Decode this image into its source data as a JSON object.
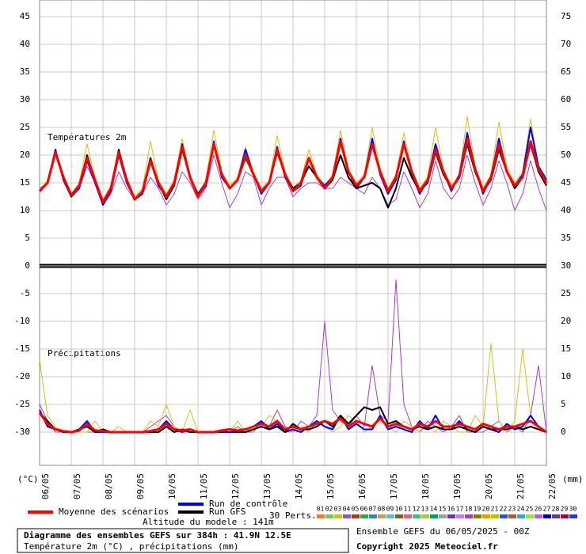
{
  "chart_data": {
    "type": "line",
    "annotations": [
      "Températures 2m",
      "Précipitations"
    ],
    "y_unit": "(°C)",
    "y2_unit": "(mm)",
    "ylim": [
      -36,
      48
    ],
    "yticks": [
      45,
      40,
      35,
      30,
      25,
      20,
      15,
      10,
      5,
      0,
      -5,
      -10,
      -15,
      -20,
      -25,
      -30
    ],
    "y2lim": [
      -6,
      78
    ],
    "y2ticks": [
      75,
      70,
      65,
      60,
      55,
      50,
      45,
      40,
      35,
      30,
      25,
      20,
      15,
      10,
      5,
      0
    ],
    "grid": true,
    "categories": [
      "06/05",
      null,
      null,
      null,
      "07/05",
      null,
      null,
      null,
      "08/05",
      null,
      null,
      null,
      "09/05",
      null,
      null,
      null,
      "10/05",
      null,
      null,
      null,
      "11/05",
      null,
      null,
      null,
      "12/05",
      null,
      null,
      null,
      "13/05",
      null,
      null,
      null,
      "14/05",
      null,
      null,
      null,
      "15/05",
      null,
      null,
      null,
      "16/05",
      null,
      null,
      null,
      "17/05",
      null,
      null,
      null,
      "18/05",
      null,
      null,
      null,
      "19/05",
      null,
      null,
      null,
      "20/05",
      null,
      null,
      null,
      "21/05",
      null,
      null,
      null,
      "22/05"
    ],
    "series": [
      {
        "color": "#a040c0",
        "values": [
          14,
          15,
          20,
          16,
          13,
          14,
          18,
          15,
          11,
          13,
          17,
          14,
          12,
          13,
          16,
          14,
          11,
          13,
          17,
          15,
          12,
          14,
          20,
          15,
          10.5,
          13,
          17,
          16,
          11,
          14,
          16,
          16,
          12.5,
          14,
          15,
          15,
          14,
          14,
          16,
          15,
          14,
          13,
          16,
          14,
          11,
          12,
          17,
          14,
          10.5,
          13,
          19,
          14,
          12,
          14,
          20,
          15,
          11,
          14,
          19,
          15,
          10,
          13,
          19,
          14,
          10
        ]
      },
      {
        "color": "#d0c020",
        "values": [
          13.5,
          15.5,
          21,
          16.5,
          13,
          15,
          22,
          16,
          12,
          14.5,
          21,
          16,
          12.5,
          14,
          22.5,
          15.5,
          13,
          15.5,
          23,
          16.5,
          13,
          15.5,
          24.5,
          17,
          14.5,
          16,
          21.5,
          17,
          14,
          15.5,
          23.5,
          17,
          14,
          15.5,
          21,
          16.5,
          14.5,
          16.5,
          24.5,
          17.5,
          15,
          16.5,
          25,
          17.5,
          14,
          16.5,
          24,
          17.5,
          14,
          16,
          25,
          17.5,
          14.5,
          16.5,
          27,
          18,
          14,
          16.5,
          26,
          18,
          15,
          17,
          26.5,
          18,
          16
        ]
      },
      {
        "color": "#a040c0",
        "axis": "y2",
        "values": [
          5,
          2,
          0,
          0,
          0,
          0,
          0,
          0,
          0,
          0,
          0,
          0,
          0,
          0,
          1,
          2,
          3,
          1,
          0,
          0,
          0,
          0,
          0,
          0,
          0,
          1,
          0,
          0,
          2,
          1,
          4,
          1,
          0,
          2,
          1,
          3,
          20,
          4,
          2,
          1,
          3,
          1,
          12,
          3,
          2,
          27.5,
          5,
          1,
          0,
          2,
          1,
          0,
          1,
          3,
          0,
          0,
          0,
          1,
          2,
          0,
          1,
          0,
          3,
          12,
          0
        ]
      },
      {
        "color": "#d0c020",
        "axis": "y2",
        "values": [
          13,
          3,
          1,
          0,
          0,
          0,
          0,
          2,
          0,
          0,
          1,
          0,
          0,
          0,
          2,
          1,
          5,
          1,
          0,
          4,
          0,
          0,
          0,
          0,
          0,
          2,
          0,
          1,
          1,
          3,
          2,
          0,
          0,
          1,
          0,
          2,
          1,
          0,
          1,
          3,
          2,
          0,
          1,
          2,
          1,
          0,
          2,
          1,
          0,
          1,
          0,
          2,
          1,
          0,
          0,
          3,
          1,
          16,
          2,
          0,
          2,
          15,
          3,
          1,
          0
        ]
      },
      {
        "name": "Run de contrôle",
        "color": "#0000ff",
        "values": [
          13.5,
          15,
          21,
          15.5,
          12.5,
          14,
          19,
          15,
          11,
          13.5,
          20,
          15,
          12,
          13,
          19,
          14.5,
          12.5,
          14.5,
          22,
          16,
          12.5,
          14.5,
          22.5,
          16,
          14,
          15.5,
          21,
          16.5,
          13,
          15,
          21.5,
          16,
          13.5,
          14.5,
          19.5,
          16,
          14.5,
          16,
          23,
          17,
          14,
          16,
          23,
          16.5,
          13,
          15.5,
          22.5,
          16.5,
          13,
          15.5,
          22,
          17,
          13.5,
          16.5,
          24,
          17.5,
          13,
          16,
          23,
          17,
          14.5,
          16.5,
          25,
          18,
          15.5
        ]
      },
      {
        "name": "Run GFS",
        "color": "#000000",
        "values": [
          13.5,
          15,
          20.5,
          16,
          12.5,
          14.5,
          20,
          15.5,
          11.5,
          14,
          21,
          15.5,
          12,
          13.5,
          19.5,
          15,
          12,
          14.5,
          21,
          16,
          13,
          15,
          22,
          16.5,
          14,
          15.5,
          19.5,
          16.5,
          13.5,
          15,
          20.5,
          16.5,
          14,
          15,
          18,
          16,
          14,
          15.5,
          20,
          16,
          14,
          14.5,
          15,
          14,
          10.5,
          14,
          19.5,
          16,
          13.5,
          15,
          20.5,
          16.5,
          14,
          16,
          22,
          17,
          13.5,
          15.5,
          21,
          17,
          14,
          16,
          22,
          17,
          14.5
        ]
      },
      {
        "name": "Moyenne des scénarios",
        "color": "#ff0000",
        "values": [
          13.5,
          15,
          20.5,
          16,
          12.8,
          14.5,
          19.5,
          15.5,
          11.5,
          14,
          20.5,
          15.5,
          12,
          13.5,
          19,
          15,
          12.5,
          15,
          21.5,
          16,
          12.5,
          15,
          22,
          16.5,
          14,
          15.5,
          20,
          16.5,
          13.5,
          15,
          21,
          16.5,
          13.5,
          15,
          19.5,
          16,
          14,
          16,
          22.5,
          17,
          14.5,
          16,
          22,
          17,
          13.5,
          16,
          22,
          17,
          13.5,
          15.5,
          21,
          17,
          14,
          16,
          23,
          17.5,
          13.5,
          16,
          22,
          17,
          14.5,
          16,
          22.5,
          17.5,
          15
        ]
      },
      {
        "color": "#0000ff",
        "axis": "y2",
        "values": [
          4,
          1,
          0.5,
          0,
          0,
          0.5,
          2,
          0,
          0,
          0,
          0,
          0,
          0,
          0,
          0,
          0.5,
          2,
          0.5,
          0,
          0.5,
          0,
          0,
          0,
          0,
          0,
          0,
          0.5,
          1,
          2,
          0.5,
          1.5,
          0,
          0.5,
          0,
          1,
          2,
          1,
          0.5,
          3,
          0.5,
          1.5,
          0.5,
          0.5,
          3,
          0.5,
          1,
          0.5,
          0,
          2,
          0.5,
          3,
          0.5,
          0.5,
          2,
          0.5,
          0,
          1,
          0.5,
          0,
          1.5,
          0.5,
          1,
          3,
          1,
          0
        ]
      },
      {
        "color": "#000000",
        "axis": "y2",
        "values": [
          3.5,
          2,
          0.5,
          0,
          0,
          0.5,
          1,
          0,
          0.5,
          0,
          0,
          0,
          0,
          0,
          0,
          0,
          1,
          0,
          0.5,
          0,
          0,
          0,
          0,
          0,
          0.5,
          0,
          0,
          0.5,
          1,
          0.5,
          1,
          0,
          1.5,
          0.5,
          0.5,
          1,
          2,
          1,
          3,
          1.5,
          3,
          4.5,
          4,
          4.5,
          1.5,
          2,
          1,
          0.5,
          1,
          0.5,
          1,
          0.5,
          0.5,
          1,
          0.5,
          0,
          1,
          0.5,
          0.5,
          0.5,
          1,
          0.5,
          1,
          0.5,
          0
        ]
      },
      {
        "color": "#ff0000",
        "axis": "y2",
        "values": [
          3.5,
          1.5,
          0.5,
          0.2,
          0,
          0.3,
          1.5,
          0.3,
          0.2,
          0,
          0,
          0,
          0,
          0,
          0.2,
          0.5,
          1.5,
          0.5,
          0.3,
          0.5,
          0,
          0,
          0,
          0.3,
          0.5,
          0.3,
          0.5,
          1,
          1.5,
          1,
          2,
          0.5,
          1,
          0.5,
          1,
          1.5,
          2,
          1.5,
          2.5,
          1,
          2,
          1.5,
          1,
          2.5,
          1,
          1.5,
          1,
          0.5,
          1.5,
          1,
          2,
          1,
          1,
          1.5,
          1,
          0.5,
          1.5,
          1,
          0.5,
          1,
          1,
          1.5,
          2,
          1,
          0
        ]
      }
    ],
    "perturbations": {
      "label": "30 Perts.",
      "items": [
        {
          "name": "01",
          "color": "#e08030"
        },
        {
          "name": "02",
          "color": "#80c060"
        },
        {
          "name": "03",
          "color": "#d0c020"
        },
        {
          "name": "04",
          "color": "#8060c0"
        },
        {
          "name": "05",
          "color": "#a04020"
        },
        {
          "name": "06",
          "color": "#40a040"
        },
        {
          "name": "07",
          "color": "#4080c0"
        },
        {
          "name": "08",
          "color": "#c0a060"
        },
        {
          "name": "09",
          "color": "#60c0c0"
        },
        {
          "name": "10",
          "color": "#806020"
        },
        {
          "name": "11",
          "color": "#e06080"
        },
        {
          "name": "12",
          "color": "#40c080"
        },
        {
          "name": "13",
          "color": "#c0c040"
        },
        {
          "name": "14",
          "color": "#00a060"
        },
        {
          "name": "15",
          "color": "#a0a0a0"
        },
        {
          "name": "16",
          "color": "#6040a0"
        },
        {
          "name": "17",
          "color": "#c080e0"
        },
        {
          "name": "18",
          "color": "#a040c0"
        },
        {
          "name": "19",
          "color": "#808000"
        },
        {
          "name": "20",
          "color": "#e0a000"
        },
        {
          "name": "21",
          "color": "#c0c000"
        },
        {
          "name": "22",
          "color": "#2060a0"
        },
        {
          "name": "23",
          "color": "#a06040"
        },
        {
          "name": "24",
          "color": "#40a0e0"
        },
        {
          "name": "25",
          "color": "#a0e040"
        },
        {
          "name": "26",
          "color": "#b060e0"
        },
        {
          "name": "27",
          "color": "#0000a0"
        },
        {
          "name": "28",
          "color": "#604080"
        },
        {
          "name": "29",
          "color": "#a00040"
        },
        {
          "name": "30",
          "color": "#2040c0"
        }
      ]
    }
  },
  "footer": {
    "altitude": "Altitude du modele : 141m",
    "title": "Diagramme des ensembles GEFS sur 384h : 41.9N 12.5E",
    "subtitle": "Température 2m (°C) , précipitations (mm)",
    "run": "Ensemble GEFS du 06/05/2025 - 00Z",
    "copyright": "Copyright 2025 Meteociel.fr"
  }
}
